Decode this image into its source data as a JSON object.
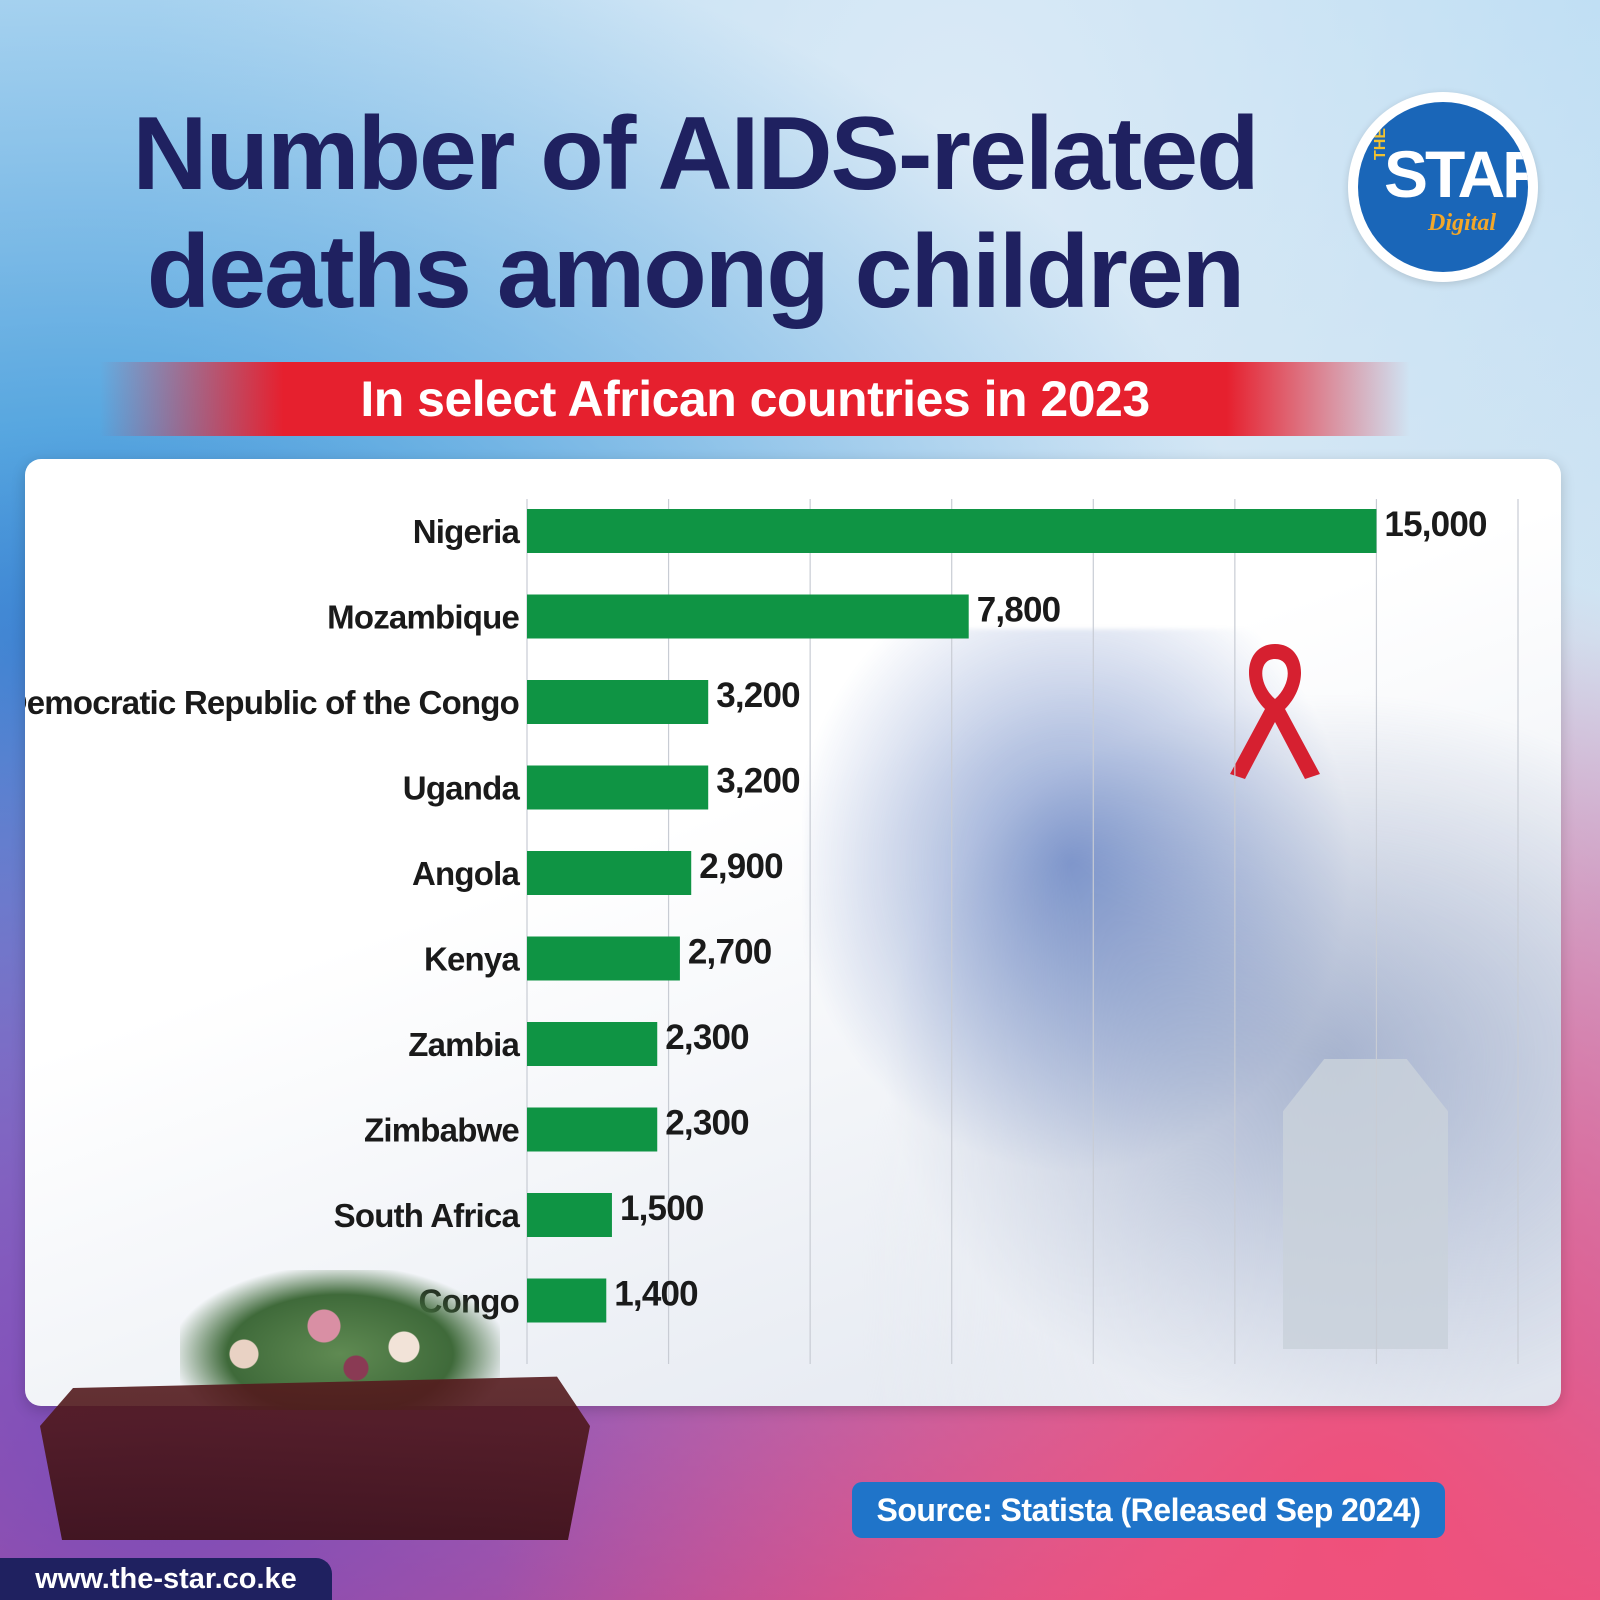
{
  "title_line1": "Number of AIDS-related",
  "title_line2": "deaths among children",
  "subtitle": "In select African countries in 2023",
  "logo": {
    "the": "THE",
    "star": "STAR",
    "digital": "Digital"
  },
  "source": "Source: Statista (Released Sep 2024)",
  "website": "www.the-star.co.ke",
  "colors": {
    "bar": "#0f9444",
    "title": "#1f2160",
    "banner": "#e6202e",
    "source_bg": "#1f74c9"
  },
  "chart_data": {
    "type": "bar",
    "orientation": "horizontal",
    "categories": [
      "Nigeria",
      "Mozambique",
      "Democratic Republic of the Congo",
      "Uganda",
      "Angola",
      "Kenya",
      "Zambia",
      "Zimbabwe",
      "South Africa",
      "Congo"
    ],
    "values": [
      15000,
      7800,
      3200,
      3200,
      2900,
      2700,
      2300,
      2300,
      1500,
      1400
    ],
    "value_labels": [
      "15,000",
      "7,800",
      "3,200",
      "3,200",
      "2,900",
      "2,700",
      "2,300",
      "2,300",
      "1,500",
      "1,400"
    ],
    "xlim": [
      0,
      17500
    ],
    "grid": true,
    "title": "Number of AIDS-related deaths among children",
    "xlabel": "",
    "ylabel": ""
  }
}
